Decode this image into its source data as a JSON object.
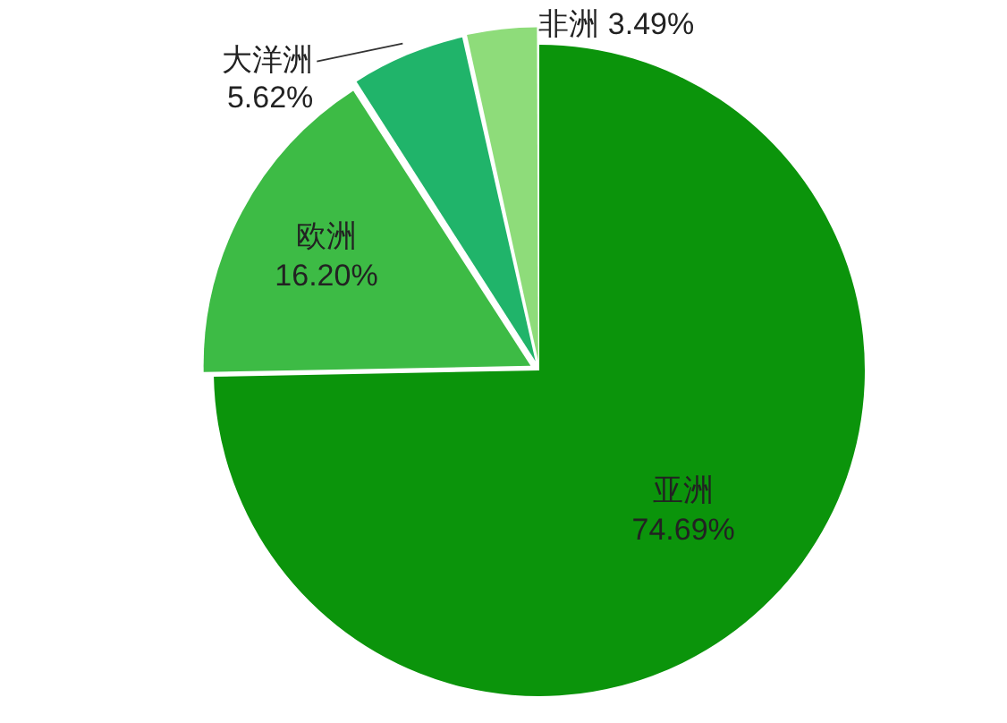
{
  "chart_data": {
    "type": "pie",
    "categories": [
      "亚洲",
      "欧洲",
      "大洋洲",
      "非洲"
    ],
    "values": [
      74.69,
      16.2,
      5.62,
      3.49
    ],
    "colors": [
      "#0b940b",
      "#3dbb45",
      "#20b46a",
      "#8edc7a"
    ],
    "value_labels": [
      "74.69%",
      "16.20%",
      "5.62%",
      "3.49%"
    ],
    "legend": false
  }
}
